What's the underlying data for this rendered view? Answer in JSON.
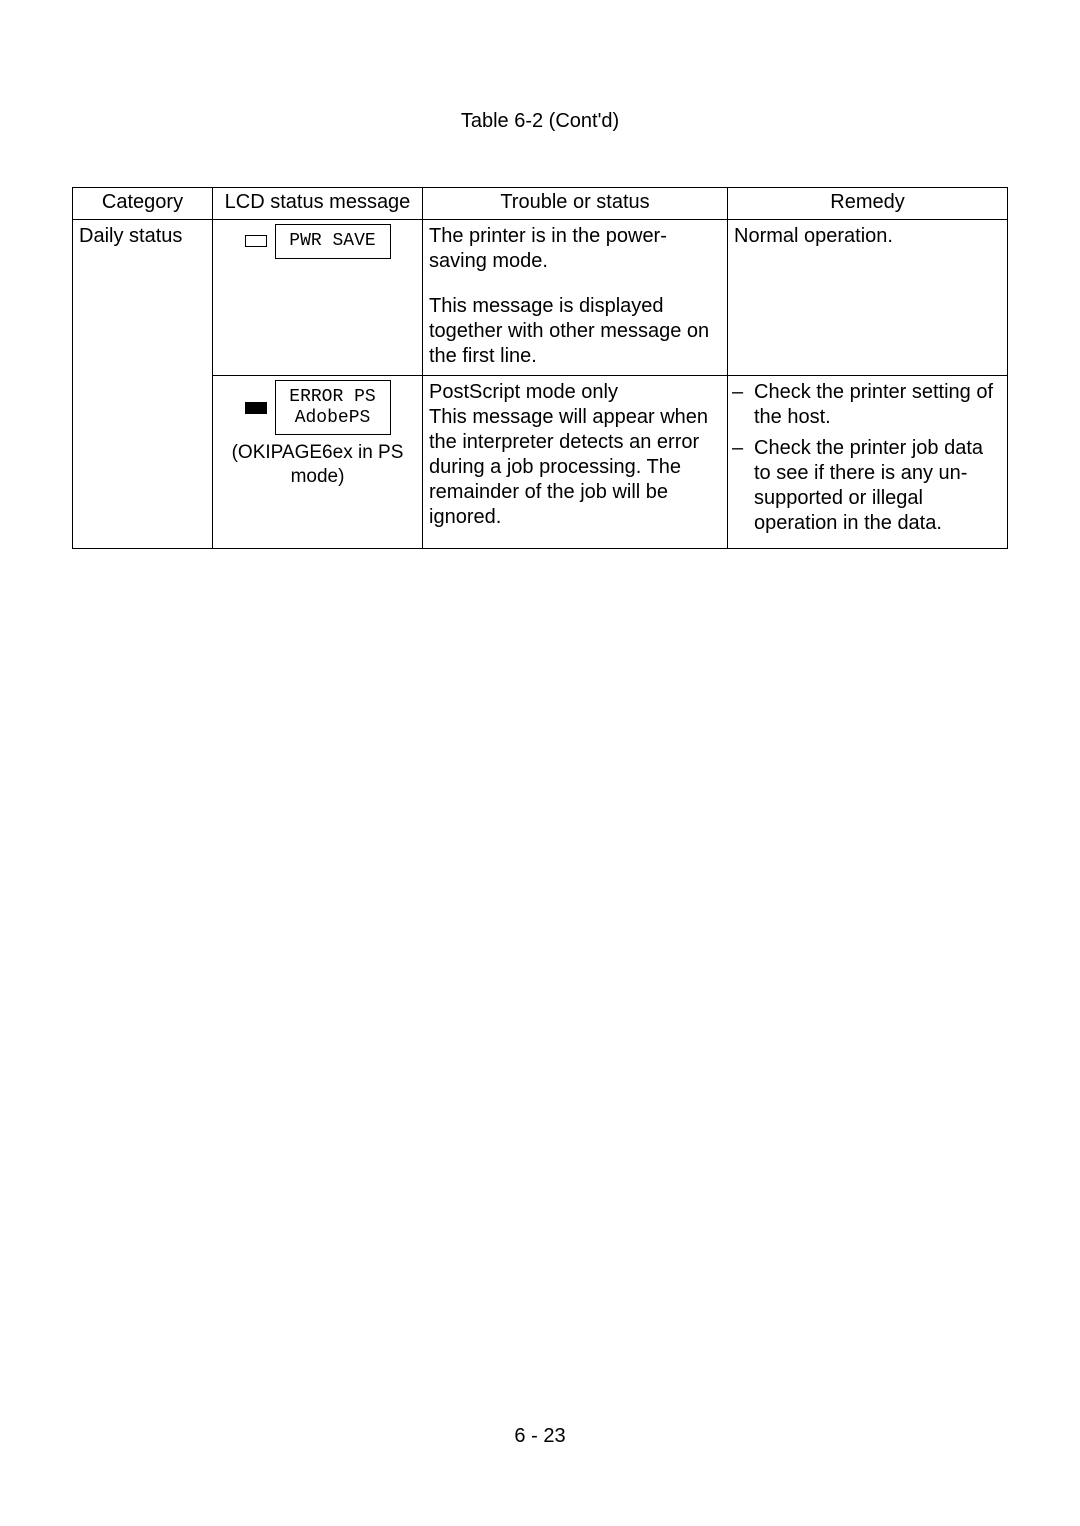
{
  "caption": "Table 6-2 (Cont'd)",
  "headers": {
    "category": "Category",
    "lcd": "LCD status message",
    "trouble": "Trouble or status",
    "remedy": "Remedy"
  },
  "row_category": "Daily status",
  "row1": {
    "lcd_text": "PWR SAVE",
    "led_filled": false,
    "trouble_p1": "The printer is in the power-saving mode.",
    "trouble_p2": "This message is displayed together with other message on the first line.",
    "remedy": "Normal operation."
  },
  "row2": {
    "lcd_line1": "ERROR PS",
    "lcd_line2": "AdobePS",
    "led_filled": true,
    "subnote": "(OKIPAGE6ex in PS mode)",
    "trouble_p1": "PostScript mode only",
    "trouble_p2": "This message will appear when the interpreter detects an error during a job processing.  The remainder of the job will be ignored.",
    "remedy1": "Check the printer setting of the host.",
    "remedy2": "Check the printer job data to see if there is any un-supported or illegal operation in the data."
  },
  "dash": "–",
  "footer": "6 - 23",
  "colors": {
    "bg": "#ffffff",
    "fg": "#000000",
    "border": "#000000"
  }
}
